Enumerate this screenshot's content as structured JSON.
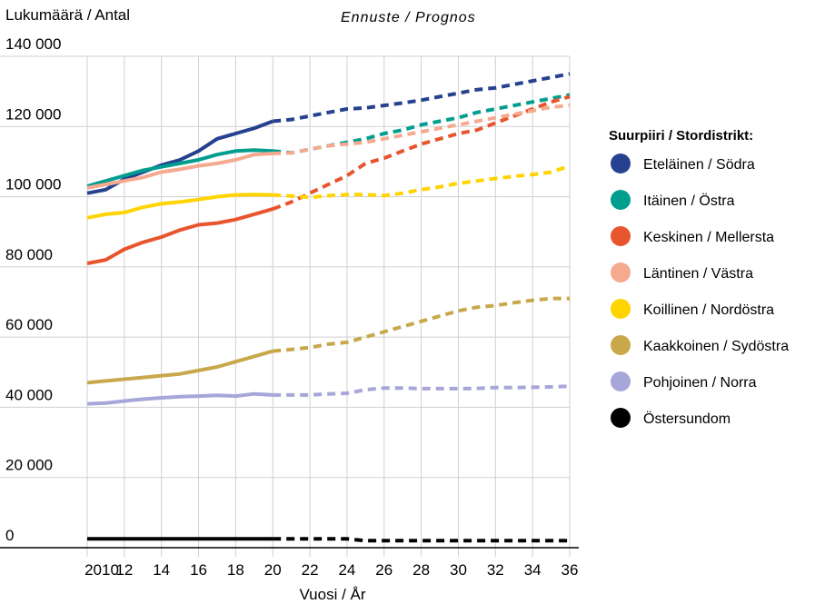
{
  "chart_data": {
    "type": "line",
    "ylabel": "Lukumäärä / Antal",
    "forecast_label": "Ennuste / Prognos",
    "xlabel": "Vuosi / År",
    "ylim": [
      0,
      140000
    ],
    "yticks": [
      0,
      20000,
      40000,
      60000,
      80000,
      100000,
      120000,
      140000
    ],
    "ytick_labels": [
      "0",
      "20 000",
      "40 000",
      "60 000",
      "80 000",
      "100 000",
      "120 000",
      "140 000"
    ],
    "xlim": [
      2010,
      2036
    ],
    "xticks": [
      2010,
      2012,
      2014,
      2016,
      2018,
      2020,
      2022,
      2024,
      2026,
      2028,
      2030,
      2032,
      2034,
      2036
    ],
    "xtick_labels": [
      "2010",
      "12",
      "14",
      "16",
      "18",
      "20",
      "22",
      "24",
      "26",
      "28",
      "30",
      "32",
      "34",
      "36"
    ],
    "forecast_start": 2020,
    "grid": "horizontal and vertical",
    "legend_title": "Suurpiiri / Stordistrikt:",
    "legend_position": "right",
    "x": [
      2010,
      2011,
      2012,
      2013,
      2014,
      2015,
      2016,
      2017,
      2018,
      2019,
      2020,
      2021,
      2022,
      2023,
      2024,
      2025,
      2026,
      2027,
      2028,
      2029,
      2030,
      2031,
      2032,
      2033,
      2034,
      2035,
      2036
    ],
    "series": [
      {
        "name": "Eteläinen / Södra",
        "color": "#25418f",
        "values": [
          101000,
          102000,
          105000,
          107000,
          109000,
          110500,
          113000,
          116500,
          118000,
          119500,
          121500,
          122000,
          123000,
          124000,
          125000,
          125300,
          126000,
          126700,
          127500,
          128500,
          129500,
          130500,
          131000,
          132000,
          133000,
          134000,
          135000
        ]
      },
      {
        "name": "Itäinen / Östra",
        "color": "#009e8e",
        "values": [
          103000,
          104500,
          106000,
          107500,
          108500,
          109500,
          110500,
          112000,
          113000,
          113300,
          113000,
          112500,
          113500,
          114500,
          115500,
          116500,
          118000,
          119000,
          120500,
          121500,
          122500,
          124000,
          125000,
          126000,
          127000,
          128000,
          129000
        ]
      },
      {
        "name": "Keskinen / Mellersta",
        "color": "#e8542e",
        "values": [
          81000,
          82000,
          85000,
          87000,
          88500,
          90500,
          92000,
          92500,
          93500,
          95000,
          96500,
          98500,
          101000,
          103500,
          106000,
          109500,
          111000,
          113000,
          115000,
          116500,
          118000,
          119000,
          121000,
          123000,
          125000,
          127000,
          128500
        ]
      },
      {
        "name": "Läntinen / Västra",
        "color": "#f5aa90",
        "values": [
          102500,
          103500,
          104500,
          105500,
          107000,
          107800,
          108800,
          109500,
          110500,
          112000,
          112300,
          112500,
          113500,
          114500,
          115000,
          115500,
          116500,
          117500,
          118500,
          119500,
          120500,
          121500,
          122500,
          123500,
          124500,
          125500,
          126000
        ]
      },
      {
        "name": "Koillinen / Nordöstra",
        "color": "#ffd400",
        "values": [
          94000,
          95000,
          95500,
          97000,
          98000,
          98500,
          99200,
          100000,
          100500,
          100600,
          100500,
          100200,
          99800,
          100300,
          100600,
          100600,
          100300,
          101000,
          102000,
          102800,
          103800,
          104500,
          105200,
          105800,
          106300,
          107000,
          108800
        ]
      },
      {
        "name": "Kaakkoinen / Sydöstra",
        "color": "#c9a84c",
        "values": [
          47000,
          47500,
          48000,
          48500,
          49000,
          49500,
          50500,
          51500,
          53000,
          54500,
          56000,
          56500,
          57000,
          58000,
          58500,
          60000,
          61500,
          63000,
          64500,
          66000,
          67500,
          68500,
          69000,
          69800,
          70500,
          71000,
          71000
        ]
      },
      {
        "name": "Pohjoinen / Norra",
        "color": "#a7a6d8",
        "values": [
          41000,
          41200,
          41800,
          42300,
          42700,
          43000,
          43200,
          43400,
          43200,
          43800,
          43500,
          43500,
          43500,
          43800,
          44000,
          45000,
          45500,
          45500,
          45300,
          45300,
          45300,
          45400,
          45600,
          45600,
          45700,
          45800,
          46000
        ]
      },
      {
        "name": "Östersundom",
        "color": "#000000",
        "values": [
          2500,
          2500,
          2500,
          2500,
          2500,
          2500,
          2500,
          2500,
          2500,
          2500,
          2500,
          2500,
          2500,
          2500,
          2500,
          2000,
          2000,
          2000,
          2000,
          2000,
          2000,
          2000,
          2000,
          2000,
          2000,
          2000,
          2000
        ]
      }
    ]
  }
}
